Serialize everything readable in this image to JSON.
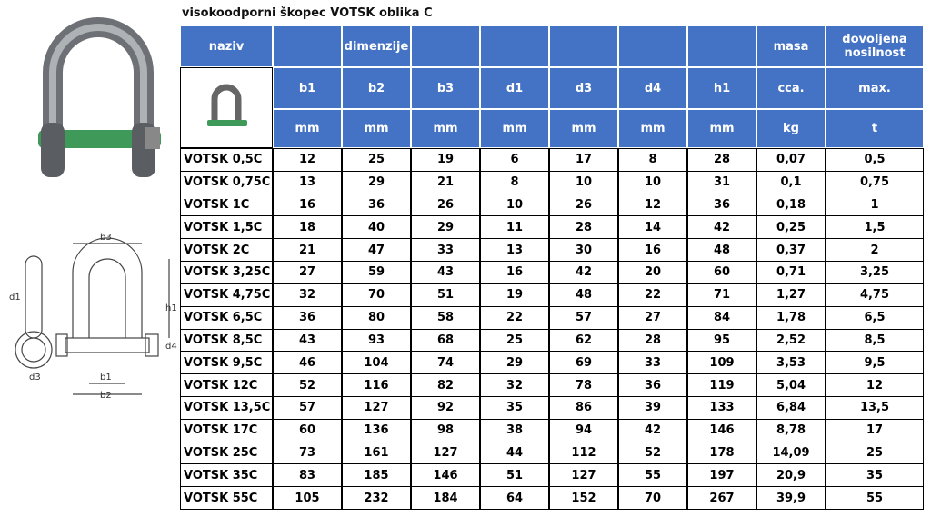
{
  "header": {
    "title": "visokoodporni škopec VOTSK oblika C"
  },
  "table": {
    "group_headers": {
      "naziv": "naziv",
      "dimenzije": "dimenzije",
      "masa": "masa",
      "nosilnost": "dovoljena nosilnost"
    },
    "symbols": [
      "b1",
      "b2",
      "b3",
      "d1",
      "d3",
      "d4",
      "h1",
      "cca.",
      "max."
    ],
    "units": [
      "mm",
      "mm",
      "mm",
      "mm",
      "mm",
      "mm",
      "mm",
      "kg",
      "t"
    ],
    "rows": [
      [
        "VOTSK 0,5C",
        "12",
        "25",
        "19",
        "6",
        "17",
        "8",
        "28",
        "0,07",
        "0,5"
      ],
      [
        "VOTSK 0,75C",
        "13",
        "29",
        "21",
        "8",
        "10",
        "10",
        "31",
        "0,1",
        "0,75"
      ],
      [
        "VOTSK 1C",
        "16",
        "36",
        "26",
        "10",
        "26",
        "12",
        "36",
        "0,18",
        "1"
      ],
      [
        "VOTSK 1,5C",
        "18",
        "40",
        "29",
        "11",
        "28",
        "14",
        "42",
        "0,25",
        "1,5"
      ],
      [
        "VOTSK 2C",
        "21",
        "47",
        "33",
        "13",
        "30",
        "16",
        "48",
        "0,37",
        "2"
      ],
      [
        "VOTSK 3,25C",
        "27",
        "59",
        "43",
        "16",
        "42",
        "20",
        "60",
        "0,71",
        "3,25"
      ],
      [
        "VOTSK 4,75C",
        "32",
        "70",
        "51",
        "19",
        "48",
        "22",
        "71",
        "1,27",
        "4,75"
      ],
      [
        "VOTSK 6,5C",
        "36",
        "80",
        "58",
        "22",
        "57",
        "27",
        "84",
        "1,78",
        "6,5"
      ],
      [
        "VOTSK 8,5C",
        "43",
        "93",
        "68",
        "25",
        "62",
        "28",
        "95",
        "2,52",
        "8,5"
      ],
      [
        "VOTSK 9,5C",
        "46",
        "104",
        "74",
        "29",
        "69",
        "33",
        "109",
        "3,53",
        "9,5"
      ],
      [
        "VOTSK 12C",
        "52",
        "116",
        "82",
        "32",
        "78",
        "36",
        "119",
        "5,04",
        "12"
      ],
      [
        "VOTSK 13,5C",
        "57",
        "127",
        "92",
        "35",
        "86",
        "39",
        "133",
        "6,84",
        "13,5"
      ],
      [
        "VOTSK 17C",
        "60",
        "136",
        "98",
        "38",
        "94",
        "42",
        "146",
        "8,78",
        "17"
      ],
      [
        "VOTSK 25C",
        "73",
        "161",
        "127",
        "44",
        "112",
        "52",
        "178",
        "14,09",
        "25"
      ],
      [
        "VOTSK 35C",
        "83",
        "185",
        "146",
        "51",
        "127",
        "55",
        "197",
        "20,9",
        "35"
      ],
      [
        "VOTSK 55C",
        "105",
        "232",
        "184",
        "64",
        "152",
        "70",
        "267",
        "39,9",
        "55"
      ]
    ]
  },
  "drawing": {
    "labels": [
      "b3",
      "d1",
      "h1",
      "d4",
      "d3",
      "b1",
      "b2"
    ]
  }
}
